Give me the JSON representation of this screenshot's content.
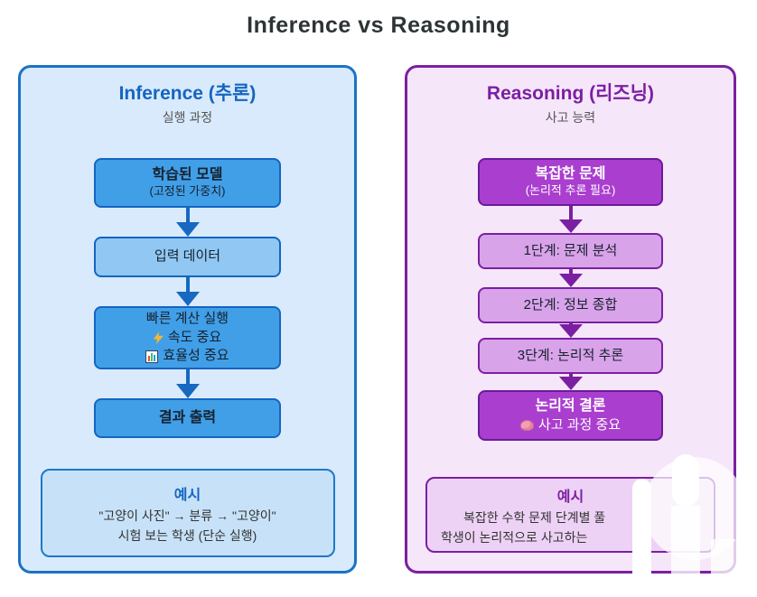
{
  "title": "Inference vs Reasoning",
  "colors": {
    "title_text": "#2d3436",
    "left_accent": "#1565c0",
    "left_panel_bg": "#d9eafc",
    "left_panel_border": "#1a73c4",
    "left_node_fill": "#419fe8",
    "left_node_light_fill": "#90c8f3",
    "left_example_bg": "#c7e2f8",
    "left_arrow": "#1668c1",
    "right_accent": "#7b1fa2",
    "right_panel_bg": "#f6e6fa",
    "right_panel_border": "#7b1fa2",
    "right_node_fill": "#aa3ecf",
    "right_node_border": "#6a1b9a",
    "right_node_light_fill": "#d9a3ea",
    "right_example_bg": "#edd2f5",
    "subtitle_text": "#555555",
    "node_text_dark": "#16202c",
    "node_text_light": "#ffffff"
  },
  "left_panel": {
    "title": "Inference (추론)",
    "subtitle": "실행 과정",
    "nodes": {
      "trained_model": {
        "line1": "학습된 모델",
        "line2": "(고정된 가중치)"
      },
      "input_data": {
        "line1": "입력 데이터"
      },
      "fast_compute": {
        "line1": "빠른 계산 실행",
        "line2": "속도 중요",
        "line3": "효율성 중요"
      },
      "output": {
        "line1": "결과 출력"
      }
    },
    "example": {
      "title": "예시",
      "line1": "\"고양이 사진\" → 분류 → \"고양이\"",
      "line2": "시험 보는 학생 (단순 실행)"
    }
  },
  "right_panel": {
    "title": "Reasoning (리즈닝)",
    "subtitle": "사고 능력",
    "nodes": {
      "complex_problem": {
        "line1": "복잡한 문제",
        "line2": "(논리적 추론 필요)"
      },
      "step1": {
        "line1": "1단계: 문제 분석"
      },
      "step2": {
        "line1": "2단계: 정보 종합"
      },
      "step3": {
        "line1": "3단계: 논리적 추론"
      },
      "conclusion": {
        "line1": "논리적 결론",
        "line2": "사고 과정 중요"
      }
    },
    "example": {
      "title": "예시",
      "line1": "복잡한 수학 문제 단계별 풀",
      "line2": "학생이 논리적으로 사고하는"
    }
  },
  "icons": {
    "speed": "lightning-icon",
    "efficiency": "bar-chart-icon",
    "thinking": "brain-icon",
    "flow_connector": "arrow-down-icon"
  }
}
